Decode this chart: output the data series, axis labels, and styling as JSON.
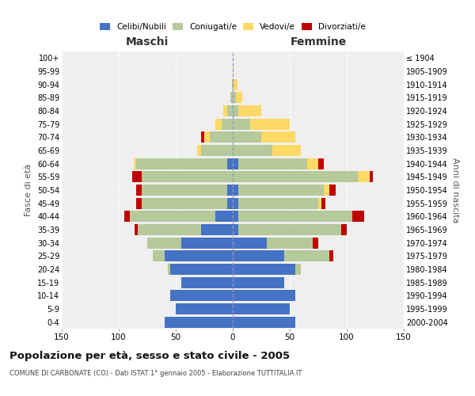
{
  "age_groups": [
    "0-4",
    "5-9",
    "10-14",
    "15-19",
    "20-24",
    "25-29",
    "30-34",
    "35-39",
    "40-44",
    "45-49",
    "50-54",
    "55-59",
    "60-64",
    "65-69",
    "70-74",
    "75-79",
    "80-84",
    "85-89",
    "90-94",
    "95-99",
    "100+"
  ],
  "birth_years": [
    "2000-2004",
    "1995-1999",
    "1990-1994",
    "1985-1989",
    "1980-1984",
    "1975-1979",
    "1970-1974",
    "1965-1969",
    "1960-1964",
    "1955-1959",
    "1950-1954",
    "1945-1949",
    "1940-1944",
    "1935-1939",
    "1930-1934",
    "1925-1929",
    "1920-1924",
    "1915-1919",
    "1910-1914",
    "1905-1909",
    "≤ 1904"
  ],
  "maschi_celibi": [
    60,
    50,
    55,
    45,
    55,
    60,
    45,
    28,
    15,
    5,
    5,
    0,
    5,
    0,
    0,
    0,
    0,
    0,
    0,
    0,
    0
  ],
  "maschi_coniugati": [
    0,
    0,
    0,
    0,
    2,
    10,
    30,
    55,
    75,
    75,
    75,
    80,
    80,
    28,
    20,
    10,
    5,
    2,
    1,
    0,
    0
  ],
  "maschi_vedovi": [
    0,
    0,
    0,
    0,
    0,
    0,
    0,
    0,
    0,
    0,
    0,
    0,
    2,
    3,
    5,
    5,
    3,
    0,
    0,
    0,
    0
  ],
  "maschi_divorziati": [
    0,
    0,
    0,
    0,
    0,
    0,
    0,
    3,
    5,
    5,
    5,
    8,
    0,
    0,
    3,
    0,
    0,
    0,
    0,
    0,
    0
  ],
  "femmine_nubili": [
    55,
    50,
    55,
    45,
    55,
    45,
    30,
    5,
    5,
    5,
    5,
    0,
    5,
    0,
    0,
    0,
    0,
    0,
    0,
    0,
    0
  ],
  "femmine_coniugate": [
    0,
    0,
    0,
    0,
    5,
    40,
    40,
    90,
    100,
    70,
    75,
    110,
    60,
    35,
    25,
    15,
    5,
    3,
    1,
    0,
    0
  ],
  "femmine_vedove": [
    0,
    0,
    0,
    0,
    0,
    0,
    0,
    0,
    0,
    3,
    5,
    10,
    10,
    25,
    30,
    35,
    20,
    5,
    3,
    1,
    0
  ],
  "femmine_divorziate": [
    0,
    0,
    0,
    0,
    0,
    3,
    5,
    5,
    10,
    3,
    5,
    3,
    5,
    0,
    0,
    0,
    0,
    0,
    0,
    0,
    0
  ],
  "colors": {
    "celibi": "#4472c4",
    "coniugati": "#b5c99a",
    "vedovi": "#ffd966",
    "divorziati": "#c00000"
  },
  "title": "Popolazione per età, sesso e stato civile - 2005",
  "subtitle": "COMUNE DI CARBONATE (CO) - Dati ISTAT 1° gennaio 2005 - Elaborazione TUTTITALIA.IT",
  "xlabel_left": "Maschi",
  "xlabel_right": "Femmine",
  "ylabel_left": "Fasce di età",
  "ylabel_right": "Anni di nascita",
  "xlim": 150,
  "background_color": "#ffffff",
  "plot_background": "#efefef"
}
